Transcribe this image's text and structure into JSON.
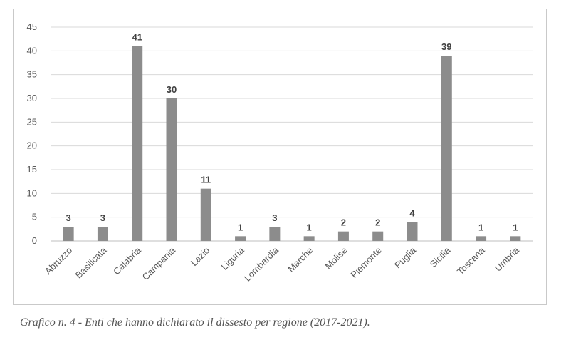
{
  "caption": "Grafico n. 4 - Enti che hanno dichiarato il dissesto per regione (2017-2021).",
  "colors": {
    "bar": "#8c8c8c",
    "grid": "#d9d9d9",
    "axis": "#bfbfbf"
  },
  "chart_data": {
    "type": "bar",
    "categories": [
      "Abruzzo",
      "Basilicata",
      "Calabria",
      "Campania",
      "Lazio",
      "Liguria",
      "Lombardia",
      "Marche",
      "Molise",
      "Piemonte",
      "Puglia",
      "Sicilia",
      "Toscana",
      "Umbria"
    ],
    "values": [
      3,
      3,
      41,
      30,
      11,
      1,
      3,
      1,
      2,
      2,
      4,
      39,
      1,
      1
    ],
    "ylim": [
      0,
      45
    ],
    "yticks": [
      0,
      5,
      10,
      15,
      20,
      25,
      30,
      35,
      40,
      45
    ],
    "grid": true,
    "data_labels": true
  }
}
